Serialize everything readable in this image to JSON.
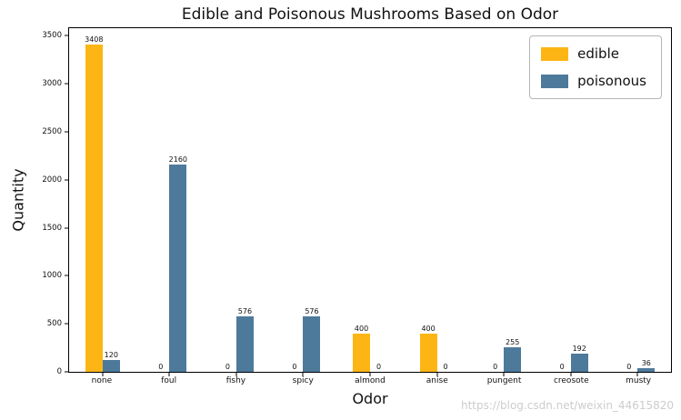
{
  "watermark": "https://blog.csdn.net/weixin_44615820",
  "chart_data": {
    "type": "bar",
    "title": "Edible and Poisonous Mushrooms Based on Odor",
    "xlabel": "Odor",
    "ylabel": "Quantity",
    "categories": [
      "none",
      "foul",
      "fishy",
      "spicy",
      "almond",
      "anise",
      "pungent",
      "creosote",
      "musty"
    ],
    "series": [
      {
        "name": "edible",
        "color": "#FDB515",
        "values": [
          3408,
          0,
          0,
          0,
          400,
          400,
          0,
          0,
          0
        ]
      },
      {
        "name": "poisonous",
        "color": "#4D7A9B",
        "values": [
          120,
          2160,
          576,
          576,
          0,
          0,
          255,
          192,
          36
        ]
      }
    ],
    "ylim": [
      0,
      3580
    ],
    "yticks": [
      0,
      500,
      1000,
      1500,
      2000,
      2500,
      3000,
      3500
    ],
    "bar_labels": true,
    "legend_position": "upper right",
    "grid": false
  }
}
